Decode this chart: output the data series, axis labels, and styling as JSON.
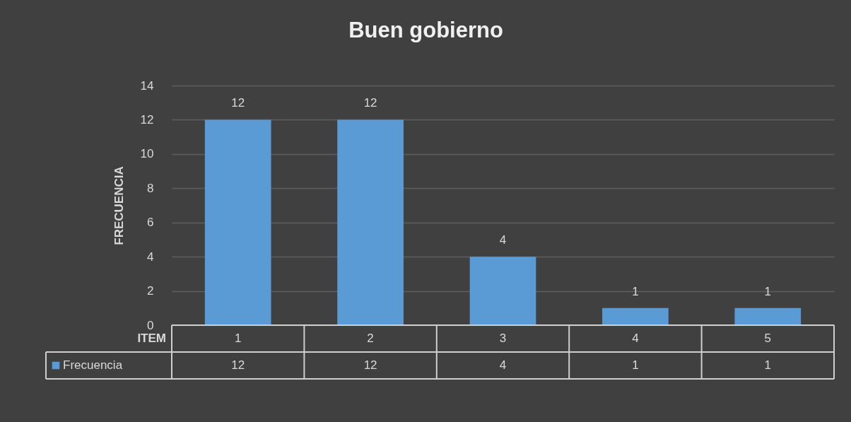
{
  "chart_data": {
    "type": "bar",
    "title": "Buen gobierno",
    "xlabel": "ITEM",
    "ylabel": "FRECUENCIA",
    "categories": [
      "1",
      "2",
      "3",
      "4",
      "5"
    ],
    "series": [
      {
        "name": "Frecuencia",
        "color": "#5b9bd5",
        "values": [
          12,
          12,
          4,
          1,
          1
        ],
        "value_labels": [
          "12",
          "12",
          "4",
          "1",
          "1"
        ]
      }
    ],
    "ylim": [
      0,
      14
    ],
    "yticks": [
      0,
      2,
      4,
      6,
      8,
      10,
      12,
      14
    ],
    "grid": "y",
    "legend": "bottom left"
  }
}
